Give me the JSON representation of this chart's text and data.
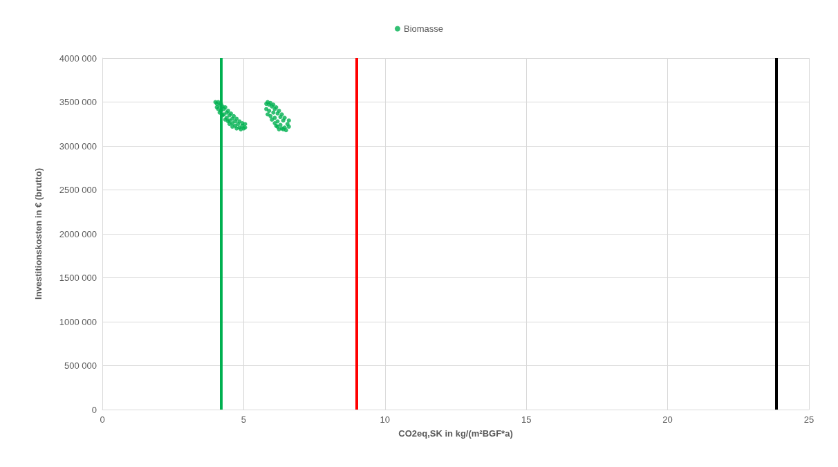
{
  "chart_data": {
    "type": "scatter",
    "xlabel": "CO2eq,SK in kg/(m²BGF*a)",
    "ylabel": "Investitionskosten in € (brutto)",
    "xlim": [
      0,
      25
    ],
    "xticks": [
      0,
      5,
      10,
      15,
      20,
      25
    ],
    "ylim": [
      0,
      4000000
    ],
    "yticks": [
      {
        "value": 0,
        "label": "0"
      },
      {
        "value": 500000,
        "label": "500 000"
      },
      {
        "value": 1000000,
        "label": "1000 000"
      },
      {
        "value": 1500000,
        "label": "1500 000"
      },
      {
        "value": 2000000,
        "label": "2000 000"
      },
      {
        "value": 2500000,
        "label": "2500 000"
      },
      {
        "value": 3000000,
        "label": "3000 000"
      },
      {
        "value": 3500000,
        "label": "3500 000"
      },
      {
        "value": 4000000,
        "label": "4000 000"
      }
    ],
    "grid": true,
    "legend": "top",
    "marker": "circle",
    "series": [
      {
        "name": "Biomasse",
        "color": "#00b050",
        "x": [
          4.0,
          4.05,
          4.1,
          4.05,
          4.1,
          4.15,
          4.2,
          4.25,
          4.2,
          4.3,
          4.35,
          4.3,
          4.4,
          4.45,
          4.4,
          4.5,
          4.55,
          4.5,
          4.6,
          4.65,
          4.6,
          4.7,
          4.75,
          4.7,
          4.8,
          4.85,
          4.85,
          4.95,
          4.95,
          5.05,
          5.05,
          4.25,
          4.35,
          4.5,
          4.6,
          4.75,
          4.9,
          5.0,
          4.15,
          4.45,
          5.8,
          5.85,
          5.9,
          5.95,
          5.8,
          5.9,
          6.0,
          6.05,
          5.85,
          5.95,
          6.05,
          6.1,
          6.15,
          6.0,
          6.1,
          6.2,
          6.25,
          6.1,
          6.2,
          6.3,
          6.35,
          6.2,
          6.3,
          6.4,
          6.45,
          6.35,
          6.45,
          6.55,
          6.6,
          6.6,
          6.5,
          6.4,
          6.25,
          6.15
        ],
        "values": [
          3500000,
          3480000,
          3500000,
          3440000,
          3420000,
          3460000,
          3480000,
          3450000,
          3400000,
          3420000,
          3440000,
          3360000,
          3380000,
          3400000,
          3320000,
          3350000,
          3370000,
          3290000,
          3310000,
          3340000,
          3260000,
          3280000,
          3310000,
          3230000,
          3250000,
          3280000,
          3210000,
          3230000,
          3260000,
          3250000,
          3210000,
          3350000,
          3300000,
          3250000,
          3220000,
          3200000,
          3190000,
          3200000,
          3380000,
          3280000,
          3480000,
          3500000,
          3470000,
          3490000,
          3420000,
          3400000,
          3450000,
          3470000,
          3360000,
          3340000,
          3380000,
          3420000,
          3440000,
          3300000,
          3320000,
          3370000,
          3400000,
          3260000,
          3280000,
          3330000,
          3360000,
          3220000,
          3240000,
          3290000,
          3320000,
          3200000,
          3210000,
          3250000,
          3290000,
          3220000,
          3180000,
          3190000,
          3190000,
          3230000
        ]
      }
    ],
    "ref_lines": [
      {
        "axis": "x",
        "value": 4.2,
        "color": "#00b050"
      },
      {
        "axis": "x",
        "value": 9.0,
        "color": "#ff0000"
      },
      {
        "axis": "x",
        "value": 23.85,
        "color": "#000000"
      }
    ]
  }
}
